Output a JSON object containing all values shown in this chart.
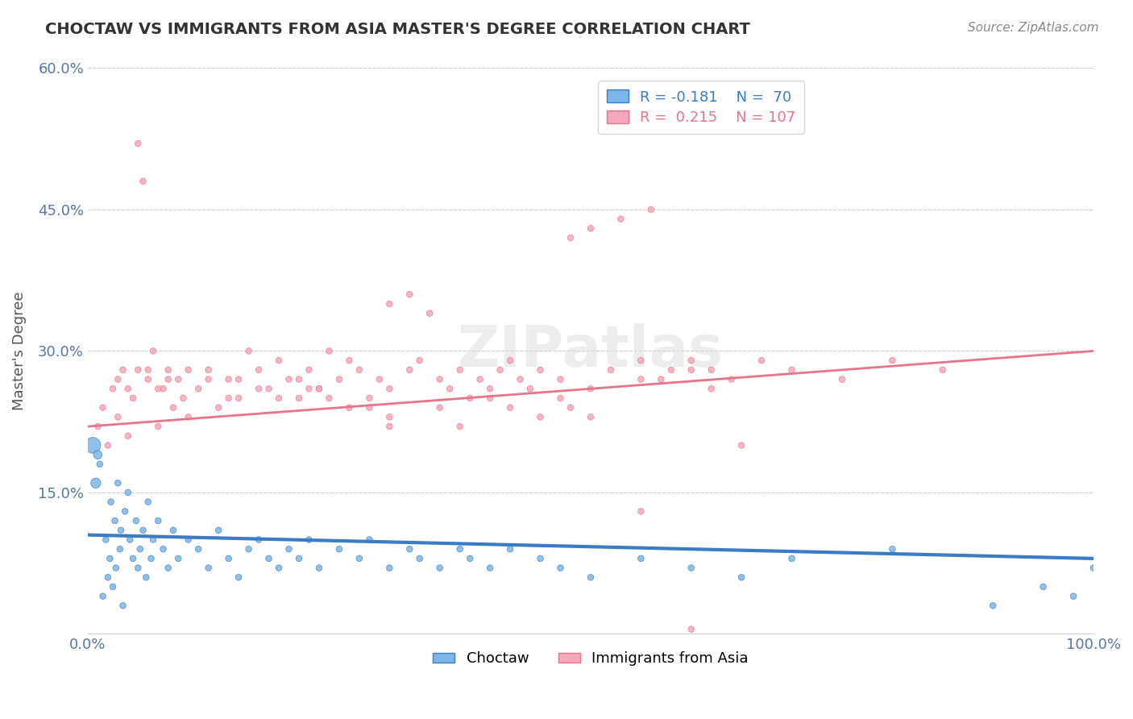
{
  "title": "CHOCTAW VS IMMIGRANTS FROM ASIA MASTER'S DEGREE CORRELATION CHART",
  "source": "Source: ZipAtlas.com",
  "xlabel": "",
  "ylabel": "Master's Degree",
  "xlim": [
    0.0,
    100.0
  ],
  "ylim": [
    0.0,
    60.0
  ],
  "yticks": [
    0.0,
    15.0,
    30.0,
    45.0,
    60.0
  ],
  "ytick_labels": [
    "",
    "15.0%",
    "30.0%",
    "45.0%",
    "60.0%"
  ],
  "xtick_labels": [
    "0.0%",
    "100.0%"
  ],
  "legend_blue_r": "R = -0.181",
  "legend_blue_n": "N =  70",
  "legend_pink_r": "R =  0.215",
  "legend_pink_n": "N = 107",
  "blue_color": "#7EB6E8",
  "pink_color": "#F4A8B8",
  "line_blue_color": "#3A7CC5",
  "line_pink_color": "#E8748A",
  "watermark_color": "#CCCCCC",
  "background_color": "#FFFFFF",
  "grid_color": "#CCCCCC",
  "title_color": "#333333",
  "source_color": "#888888",
  "axis_label_color": "#5577AA",
  "blue_scatter": {
    "x": [
      1.2,
      1.5,
      1.8,
      2.0,
      2.2,
      2.3,
      2.5,
      2.7,
      2.8,
      3.0,
      3.2,
      3.3,
      3.5,
      3.7,
      4.0,
      4.2,
      4.5,
      4.8,
      5.0,
      5.2,
      5.5,
      5.8,
      6.0,
      6.3,
      6.5,
      7.0,
      7.5,
      8.0,
      8.5,
      9.0,
      10.0,
      11.0,
      12.0,
      13.0,
      14.0,
      15.0,
      16.0,
      17.0,
      18.0,
      19.0,
      20.0,
      21.0,
      22.0,
      23.0,
      25.0,
      27.0,
      28.0,
      30.0,
      32.0,
      33.0,
      35.0,
      37.0,
      38.0,
      40.0,
      42.0,
      45.0,
      47.0,
      50.0,
      55.0,
      60.0,
      65.0,
      70.0,
      80.0,
      90.0,
      95.0,
      98.0,
      100.0,
      0.5,
      0.8,
      1.0
    ],
    "y": [
      18.0,
      4.0,
      10.0,
      6.0,
      8.0,
      14.0,
      5.0,
      12.0,
      7.0,
      16.0,
      9.0,
      11.0,
      3.0,
      13.0,
      15.0,
      10.0,
      8.0,
      12.0,
      7.0,
      9.0,
      11.0,
      6.0,
      14.0,
      8.0,
      10.0,
      12.0,
      9.0,
      7.0,
      11.0,
      8.0,
      10.0,
      9.0,
      7.0,
      11.0,
      8.0,
      6.0,
      9.0,
      10.0,
      8.0,
      7.0,
      9.0,
      8.0,
      10.0,
      7.0,
      9.0,
      8.0,
      10.0,
      7.0,
      9.0,
      8.0,
      7.0,
      9.0,
      8.0,
      7.0,
      9.0,
      8.0,
      7.0,
      6.0,
      8.0,
      7.0,
      6.0,
      8.0,
      9.0,
      3.0,
      5.0,
      4.0,
      7.0,
      20.0,
      16.0,
      19.0
    ],
    "sizes": [
      30,
      30,
      30,
      30,
      30,
      30,
      30,
      30,
      30,
      30,
      30,
      30,
      30,
      30,
      30,
      30,
      30,
      30,
      30,
      30,
      30,
      30,
      30,
      30,
      30,
      30,
      30,
      30,
      30,
      30,
      30,
      30,
      30,
      30,
      30,
      30,
      30,
      30,
      30,
      30,
      30,
      30,
      30,
      30,
      30,
      30,
      30,
      30,
      30,
      30,
      30,
      30,
      30,
      30,
      30,
      30,
      30,
      30,
      30,
      30,
      30,
      30,
      30,
      30,
      30,
      30,
      30,
      200,
      80,
      60
    ]
  },
  "pink_scatter": {
    "x": [
      1.0,
      1.5,
      2.0,
      2.5,
      3.0,
      3.5,
      4.0,
      4.5,
      5.0,
      5.5,
      6.0,
      6.5,
      7.0,
      7.5,
      8.0,
      8.5,
      9.0,
      9.5,
      10.0,
      11.0,
      12.0,
      13.0,
      14.0,
      15.0,
      16.0,
      17.0,
      18.0,
      19.0,
      20.0,
      21.0,
      22.0,
      23.0,
      24.0,
      25.0,
      26.0,
      27.0,
      28.0,
      29.0,
      30.0,
      32.0,
      33.0,
      35.0,
      36.0,
      37.0,
      38.0,
      39.0,
      40.0,
      41.0,
      42.0,
      43.0,
      44.0,
      45.0,
      47.0,
      50.0,
      52.0,
      55.0,
      57.0,
      60.0,
      62.0,
      64.0,
      67.0,
      70.0,
      75.0,
      80.0,
      85.0,
      50.0,
      56.0,
      53.0,
      48.0,
      30.0,
      32.0,
      34.0,
      58.0,
      55.0,
      60.0,
      62.0,
      30.0,
      35.0,
      37.0,
      40.0,
      42.0,
      45.0,
      47.0,
      48.0,
      50.0,
      28.0,
      30.0,
      22.0,
      24.0,
      26.0,
      15.0,
      17.0,
      19.0,
      21.0,
      23.0,
      10.0,
      12.0,
      14.0,
      5.0,
      7.0,
      3.0,
      4.0,
      6.0,
      8.0,
      55.0,
      60.0,
      65.0
    ],
    "y": [
      22.0,
      24.0,
      20.0,
      26.0,
      23.0,
      28.0,
      21.0,
      25.0,
      52.0,
      48.0,
      27.0,
      30.0,
      22.0,
      26.0,
      28.0,
      24.0,
      27.0,
      25.0,
      23.0,
      26.0,
      28.0,
      24.0,
      27.0,
      25.0,
      30.0,
      28.0,
      26.0,
      29.0,
      27.0,
      25.0,
      28.0,
      26.0,
      30.0,
      27.0,
      29.0,
      28.0,
      25.0,
      27.0,
      26.0,
      28.0,
      29.0,
      27.0,
      26.0,
      28.0,
      25.0,
      27.0,
      26.0,
      28.0,
      29.0,
      27.0,
      26.0,
      28.0,
      27.0,
      26.0,
      28.0,
      29.0,
      27.0,
      28.0,
      26.0,
      27.0,
      29.0,
      28.0,
      27.0,
      29.0,
      28.0,
      43.0,
      45.0,
      44.0,
      42.0,
      35.0,
      36.0,
      34.0,
      28.0,
      27.0,
      29.0,
      28.0,
      23.0,
      24.0,
      22.0,
      25.0,
      24.0,
      23.0,
      25.0,
      24.0,
      23.0,
      24.0,
      22.0,
      26.0,
      25.0,
      24.0,
      27.0,
      26.0,
      25.0,
      27.0,
      26.0,
      28.0,
      27.0,
      25.0,
      28.0,
      26.0,
      27.0,
      26.0,
      28.0,
      27.0,
      13.0,
      0.5,
      20.0
    ],
    "sizes": [
      30,
      30,
      30,
      30,
      30,
      30,
      30,
      30,
      30,
      30,
      30,
      30,
      30,
      30,
      30,
      30,
      30,
      30,
      30,
      30,
      30,
      30,
      30,
      30,
      30,
      30,
      30,
      30,
      30,
      30,
      30,
      30,
      30,
      30,
      30,
      30,
      30,
      30,
      30,
      30,
      30,
      30,
      30,
      30,
      30,
      30,
      30,
      30,
      30,
      30,
      30,
      30,
      30,
      30,
      30,
      30,
      30,
      30,
      30,
      30,
      30,
      30,
      30,
      30,
      30,
      30,
      30,
      30,
      30,
      30,
      30,
      30,
      30,
      30,
      30,
      30,
      30,
      30,
      30,
      30,
      30,
      30,
      30,
      30,
      30,
      30,
      30,
      30,
      30,
      30,
      30,
      30,
      30,
      30,
      30,
      30,
      30,
      30,
      30,
      30,
      30,
      30,
      30,
      30,
      30,
      30,
      30
    ]
  },
  "blue_line": {
    "x0": 0,
    "x1": 100,
    "y0": 10.5,
    "y1": 8.0
  },
  "pink_line": {
    "x0": 0,
    "x1": 100,
    "y0": 22.0,
    "y1": 30.0
  }
}
